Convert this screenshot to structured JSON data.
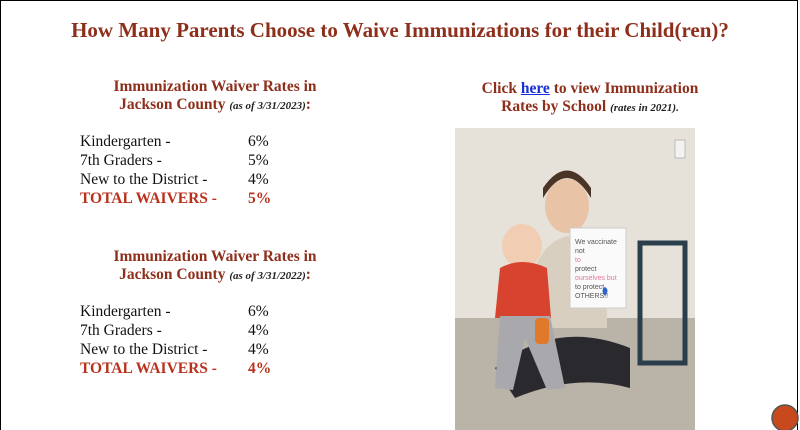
{
  "title": "How Many Parents Choose to Waive Immunizations for their Child(ren)?",
  "sections": [
    {
      "heading_line1": "Immunization Waiver Rates in",
      "heading_line2": "Jackson County",
      "date": "(as of 3/31/2023)",
      "colon": ":",
      "rows": [
        [
          "Kindergarten -",
          "6%"
        ],
        [
          "7th Graders -",
          "5%"
        ],
        [
          "New to the District -",
          "4%"
        ]
      ],
      "total": [
        "TOTAL WAIVERS -",
        "5%"
      ]
    },
    {
      "heading_line1": "Immunization Waiver Rates in",
      "heading_line2": "Jackson County",
      "date": "(as of 3/31/2022)",
      "colon": ":",
      "rows": [
        [
          "Kindergarten -",
          "6%"
        ],
        [
          "7th Graders -",
          "4%"
        ],
        [
          "New to the District -",
          "4%"
        ]
      ],
      "total": [
        "TOTAL WAIVERS -",
        "4%"
      ]
    }
  ],
  "link_panel": {
    "before": "Click",
    "link": "here",
    "after": "to view Immunization",
    "line2": "Rates by School",
    "note": "(rates in 2021)."
  },
  "photo_sign": [
    "We vaccinate",
    "not",
    "to",
    "protect",
    "ourselves but",
    "to protect",
    "OTHERS!!"
  ]
}
